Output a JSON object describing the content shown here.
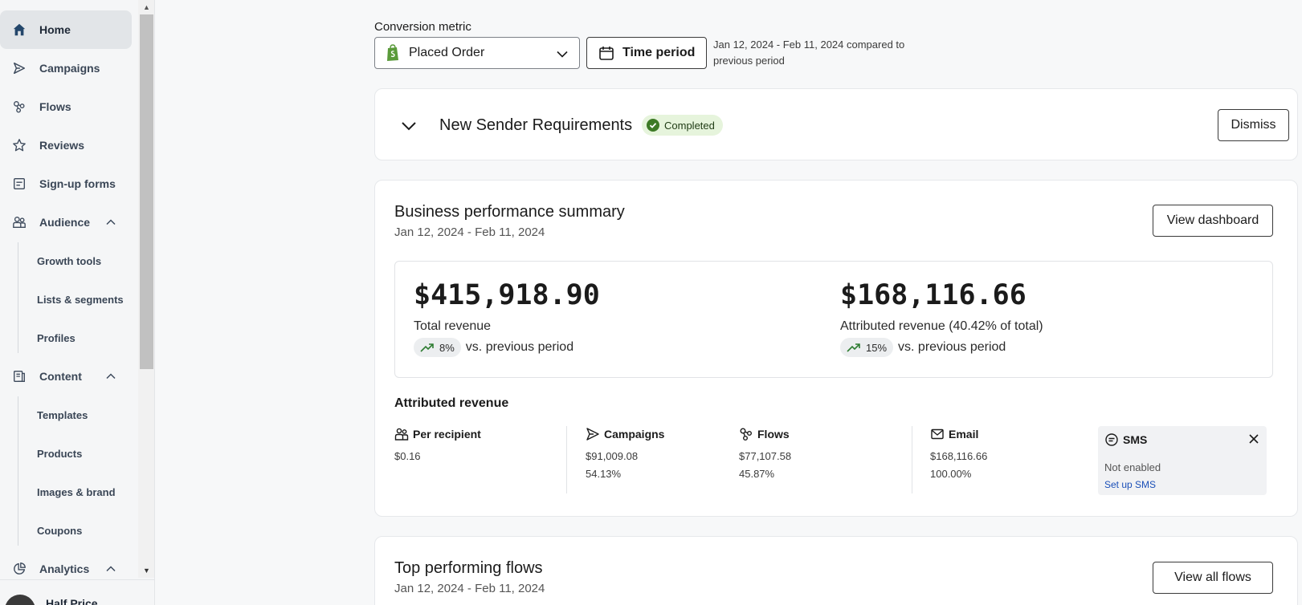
{
  "sidebar": {
    "items": [
      {
        "label": "Home",
        "icon": "home-icon"
      },
      {
        "label": "Campaigns",
        "icon": "send-icon"
      },
      {
        "label": "Flows",
        "icon": "flows-icon"
      },
      {
        "label": "Reviews",
        "icon": "star-icon"
      },
      {
        "label": "Sign-up forms",
        "icon": "form-icon"
      },
      {
        "label": "Audience",
        "icon": "users-icon"
      },
      {
        "label": "Content",
        "icon": "content-icon"
      },
      {
        "label": "Analytics",
        "icon": "chart-icon"
      }
    ],
    "audience_sub": [
      "Growth tools",
      "Lists & segments",
      "Profiles"
    ],
    "content_sub": [
      "Templates",
      "Products",
      "Images & brand",
      "Coupons"
    ],
    "account_name": "Half Price"
  },
  "header": {
    "metric_label": "Conversion metric",
    "metric_value": "Placed Order",
    "time_period_label": "Time period",
    "range_text": "Jan 12, 2024 - Feb 11, 2024 compared to previous period"
  },
  "sender_card": {
    "title": "New Sender Requirements",
    "badge": "Completed",
    "dismiss": "Dismiss"
  },
  "performance": {
    "title": "Business performance summary",
    "date_range": "Jan 12, 2024 - Feb 11, 2024",
    "view_button": "View dashboard",
    "total_revenue": {
      "value": "$415,918.90",
      "label": "Total revenue",
      "delta": "8%",
      "vs": "vs. previous period"
    },
    "attributed": {
      "value": "$168,116.66",
      "label": "Attributed revenue (40.42% of total)",
      "delta": "15%",
      "vs": "vs. previous period"
    },
    "attributed_title": "Attributed revenue",
    "per_recipient": {
      "label": "Per recipient",
      "value": "$0.16"
    },
    "campaigns": {
      "label": "Campaigns",
      "value": "$91,009.08",
      "pct": "54.13%"
    },
    "flows": {
      "label": "Flows",
      "value": "$77,107.58",
      "pct": "45.87%"
    },
    "email": {
      "label": "Email",
      "value": "$168,116.66",
      "pct": "100.00%"
    },
    "sms": {
      "label": "SMS",
      "status": "Not enabled",
      "link": "Set up SMS"
    }
  },
  "top_flows": {
    "title": "Top performing flows",
    "date_range": "Jan 12, 2024 - Feb 11, 2024",
    "view_button": "View all flows"
  },
  "colors": {
    "accent_green": "#3d7a26",
    "badge_bg": "#e6f4dc",
    "link_blue": "#1a4fb8"
  }
}
